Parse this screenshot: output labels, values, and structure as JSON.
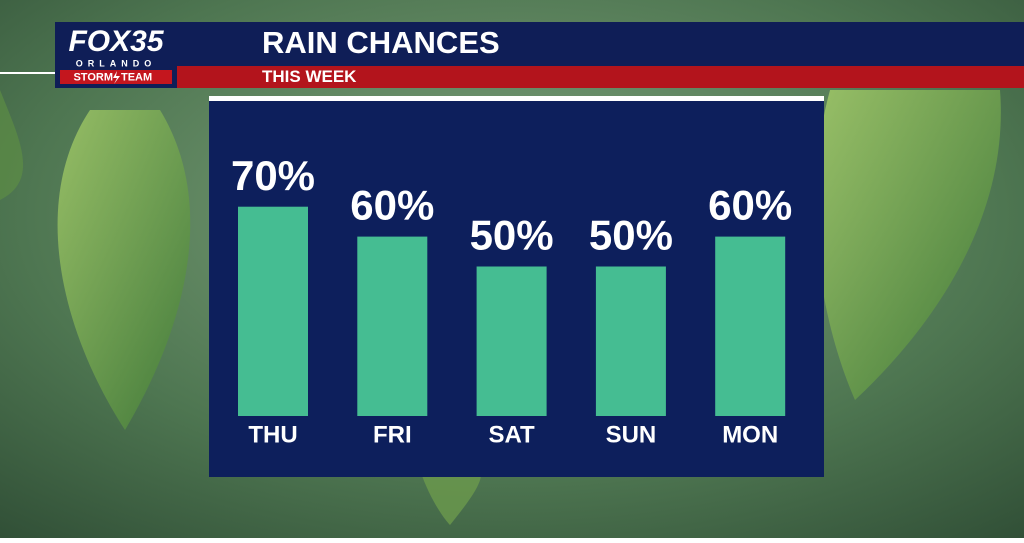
{
  "logo": {
    "brand": "FOX35",
    "city": "ORLANDO",
    "team_left": "STORM",
    "team_right": "TEAM"
  },
  "chart_data": {
    "type": "bar",
    "title": "RAIN CHANCES",
    "subtitle": "THIS WEEK",
    "categories": [
      "THU",
      "FRI",
      "SAT",
      "SUN",
      "MON"
    ],
    "values": [
      70,
      60,
      50,
      50,
      60
    ],
    "value_labels": [
      "70%",
      "60%",
      "50%",
      "50%",
      "60%"
    ],
    "color": "#45bd92"
  }
}
